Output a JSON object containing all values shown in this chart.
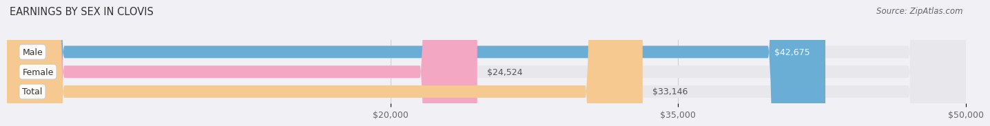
{
  "title": "EARNINGS BY SEX IN CLOVIS",
  "source": "Source: ZipAtlas.com",
  "categories": [
    "Male",
    "Female",
    "Total"
  ],
  "values": [
    42675,
    24524,
    33146
  ],
  "labels": [
    "$42,675",
    "$24,524",
    "$33,146"
  ],
  "bar_colors": [
    "#6aadd5",
    "#f4a7c3",
    "#f5c990"
  ],
  "bg_bar_color": "#e8e8ec",
  "x_min": 0,
  "x_max": 50000,
  "x_ticks": [
    20000,
    35000,
    50000
  ],
  "x_tick_labels": [
    "$20,000",
    "$35,000",
    "$50,000"
  ],
  "background_color": "#f0f0f5",
  "bar_height": 0.62,
  "title_fontsize": 10.5,
  "tick_fontsize": 9,
  "label_fontsize": 9,
  "category_fontsize": 9
}
